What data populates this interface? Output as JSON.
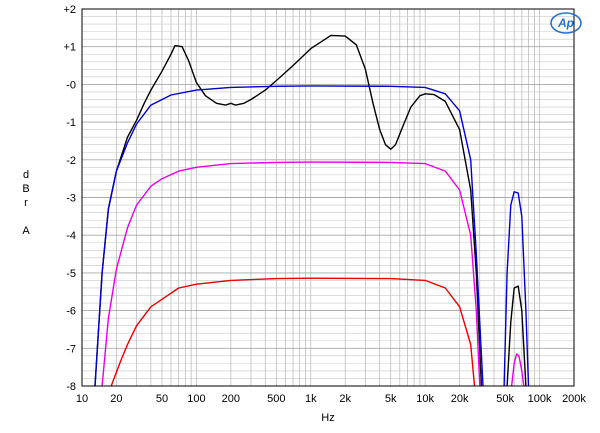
{
  "chart_data": {
    "type": "line",
    "xlabel": "Hz",
    "ylabel_lines": [
      "d",
      "B",
      "r",
      "",
      "A"
    ],
    "xscale": "log",
    "xlim": [
      10,
      200000
    ],
    "ylim": [
      -8,
      2
    ],
    "grid": true,
    "logo": "Ap",
    "x_tick_labels": [
      {
        "x": 10,
        "label": "10"
      },
      {
        "x": 20,
        "label": "20"
      },
      {
        "x": 50,
        "label": "50"
      },
      {
        "x": 100,
        "label": "100"
      },
      {
        "x": 200,
        "label": "200"
      },
      {
        "x": 500,
        "label": "500"
      },
      {
        "x": 1000,
        "label": "1k"
      },
      {
        "x": 2000,
        "label": "2k"
      },
      {
        "x": 5000,
        "label": "5k"
      },
      {
        "x": 10000,
        "label": "10k"
      },
      {
        "x": 20000,
        "label": "20k"
      },
      {
        "x": 50000,
        "label": "50k"
      },
      {
        "x": 100000,
        "label": "100k"
      },
      {
        "x": 200000,
        "label": "200k"
      }
    ],
    "y_tick_labels": [
      {
        "y": 2,
        "label": "+2"
      },
      {
        "y": 1,
        "label": "+1"
      },
      {
        "y": 0,
        "label": "-0"
      },
      {
        "y": -1,
        "label": "-1"
      },
      {
        "y": -2,
        "label": "-2"
      },
      {
        "y": -3,
        "label": "-3"
      },
      {
        "y": -4,
        "label": "-4"
      },
      {
        "y": -5,
        "label": "-5"
      },
      {
        "y": -6,
        "label": "-6"
      },
      {
        "y": -7,
        "label": "-7"
      },
      {
        "y": -8,
        "label": "-8"
      }
    ],
    "series": [
      {
        "color": "#000000",
        "segments": [
          [
            [
              13,
              -8
            ],
            [
              15,
              -5
            ],
            [
              17,
              -3.3
            ],
            [
              20,
              -2.3
            ],
            [
              25,
              -1.4
            ],
            [
              30,
              -0.95
            ],
            [
              35,
              -0.5
            ],
            [
              40,
              -0.15
            ],
            [
              50,
              0.35
            ],
            [
              60,
              0.8
            ],
            [
              65,
              1.03
            ],
            [
              75,
              1.0
            ],
            [
              85,
              0.65
            ],
            [
              100,
              0.05
            ],
            [
              120,
              -0.3
            ],
            [
              150,
              -0.5
            ],
            [
              180,
              -0.55
            ],
            [
              200,
              -0.5
            ],
            [
              220,
              -0.55
            ],
            [
              260,
              -0.5
            ],
            [
              300,
              -0.4
            ],
            [
              400,
              -0.15
            ],
            [
              500,
              0.1
            ],
            [
              700,
              0.5
            ],
            [
              1000,
              0.95
            ],
            [
              1500,
              1.3
            ],
            [
              2000,
              1.28
            ],
            [
              2500,
              1.05
            ],
            [
              3000,
              0.4
            ],
            [
              3500,
              -0.5
            ],
            [
              4000,
              -1.2
            ],
            [
              4500,
              -1.6
            ],
            [
              5000,
              -1.72
            ],
            [
              5500,
              -1.6
            ],
            [
              6500,
              -1.05
            ],
            [
              7500,
              -0.6
            ],
            [
              9000,
              -0.3
            ],
            [
              10000,
              -0.25
            ],
            [
              12000,
              -0.27
            ],
            [
              15000,
              -0.45
            ],
            [
              20000,
              -1.2
            ],
            [
              25000,
              -2.8
            ],
            [
              28000,
              -5
            ],
            [
              31000,
              -8
            ]
          ],
          [
            [
              52000,
              -8
            ],
            [
              56000,
              -6.3
            ],
            [
              60000,
              -5.4
            ],
            [
              65000,
              -5.35
            ],
            [
              70000,
              -6
            ],
            [
              76000,
              -8
            ]
          ]
        ]
      },
      {
        "color": "#0000cc",
        "segments": [
          [
            [
              13,
              -8
            ],
            [
              15,
              -5
            ],
            [
              17,
              -3.3
            ],
            [
              20,
              -2.3
            ],
            [
              25,
              -1.55
            ],
            [
              30,
              -1.05
            ],
            [
              40,
              -0.55
            ],
            [
              60,
              -0.28
            ],
            [
              100,
              -0.15
            ],
            [
              200,
              -0.08
            ],
            [
              500,
              -0.05
            ],
            [
              1000,
              -0.04
            ],
            [
              5000,
              -0.05
            ],
            [
              10000,
              -0.08
            ],
            [
              15000,
              -0.25
            ],
            [
              20000,
              -0.7
            ],
            [
              25000,
              -2.0
            ],
            [
              28000,
              -4.5
            ],
            [
              32000,
              -8
            ]
          ],
          [
            [
              49000,
              -8
            ],
            [
              52000,
              -5
            ],
            [
              56000,
              -3.2
            ],
            [
              60000,
              -2.85
            ],
            [
              65000,
              -2.88
            ],
            [
              70000,
              -3.5
            ],
            [
              76000,
              -6
            ],
            [
              80000,
              -8
            ]
          ]
        ]
      },
      {
        "color": "#e600e6",
        "segments": [
          [
            [
              15,
              -8
            ],
            [
              17,
              -6.2
            ],
            [
              20,
              -4.9
            ],
            [
              25,
              -3.8
            ],
            [
              30,
              -3.2
            ],
            [
              40,
              -2.7
            ],
            [
              50,
              -2.5
            ],
            [
              70,
              -2.3
            ],
            [
              100,
              -2.2
            ],
            [
              200,
              -2.1
            ],
            [
              500,
              -2.07
            ],
            [
              1000,
              -2.06
            ],
            [
              5000,
              -2.07
            ],
            [
              10000,
              -2.1
            ],
            [
              15000,
              -2.3
            ],
            [
              20000,
              -2.8
            ],
            [
              25000,
              -4.0
            ],
            [
              28000,
              -6
            ],
            [
              30000,
              -8
            ]
          ],
          [
            [
              57000,
              -8
            ],
            [
              60000,
              -7.4
            ],
            [
              63000,
              -7.15
            ],
            [
              66000,
              -7.2
            ],
            [
              70000,
              -7.6
            ],
            [
              73000,
              -8
            ]
          ]
        ]
      },
      {
        "color": "#e60000",
        "segments": [
          [
            [
              18,
              -8
            ],
            [
              22,
              -7.3
            ],
            [
              25,
              -6.9
            ],
            [
              30,
              -6.4
            ],
            [
              40,
              -5.9
            ],
            [
              50,
              -5.7
            ],
            [
              70,
              -5.4
            ],
            [
              100,
              -5.3
            ],
            [
              200,
              -5.2
            ],
            [
              500,
              -5.15
            ],
            [
              1000,
              -5.14
            ],
            [
              5000,
              -5.15
            ],
            [
              10000,
              -5.2
            ],
            [
              15000,
              -5.4
            ],
            [
              20000,
              -5.9
            ],
            [
              25000,
              -6.9
            ],
            [
              27000,
              -8
            ]
          ]
        ]
      }
    ]
  }
}
